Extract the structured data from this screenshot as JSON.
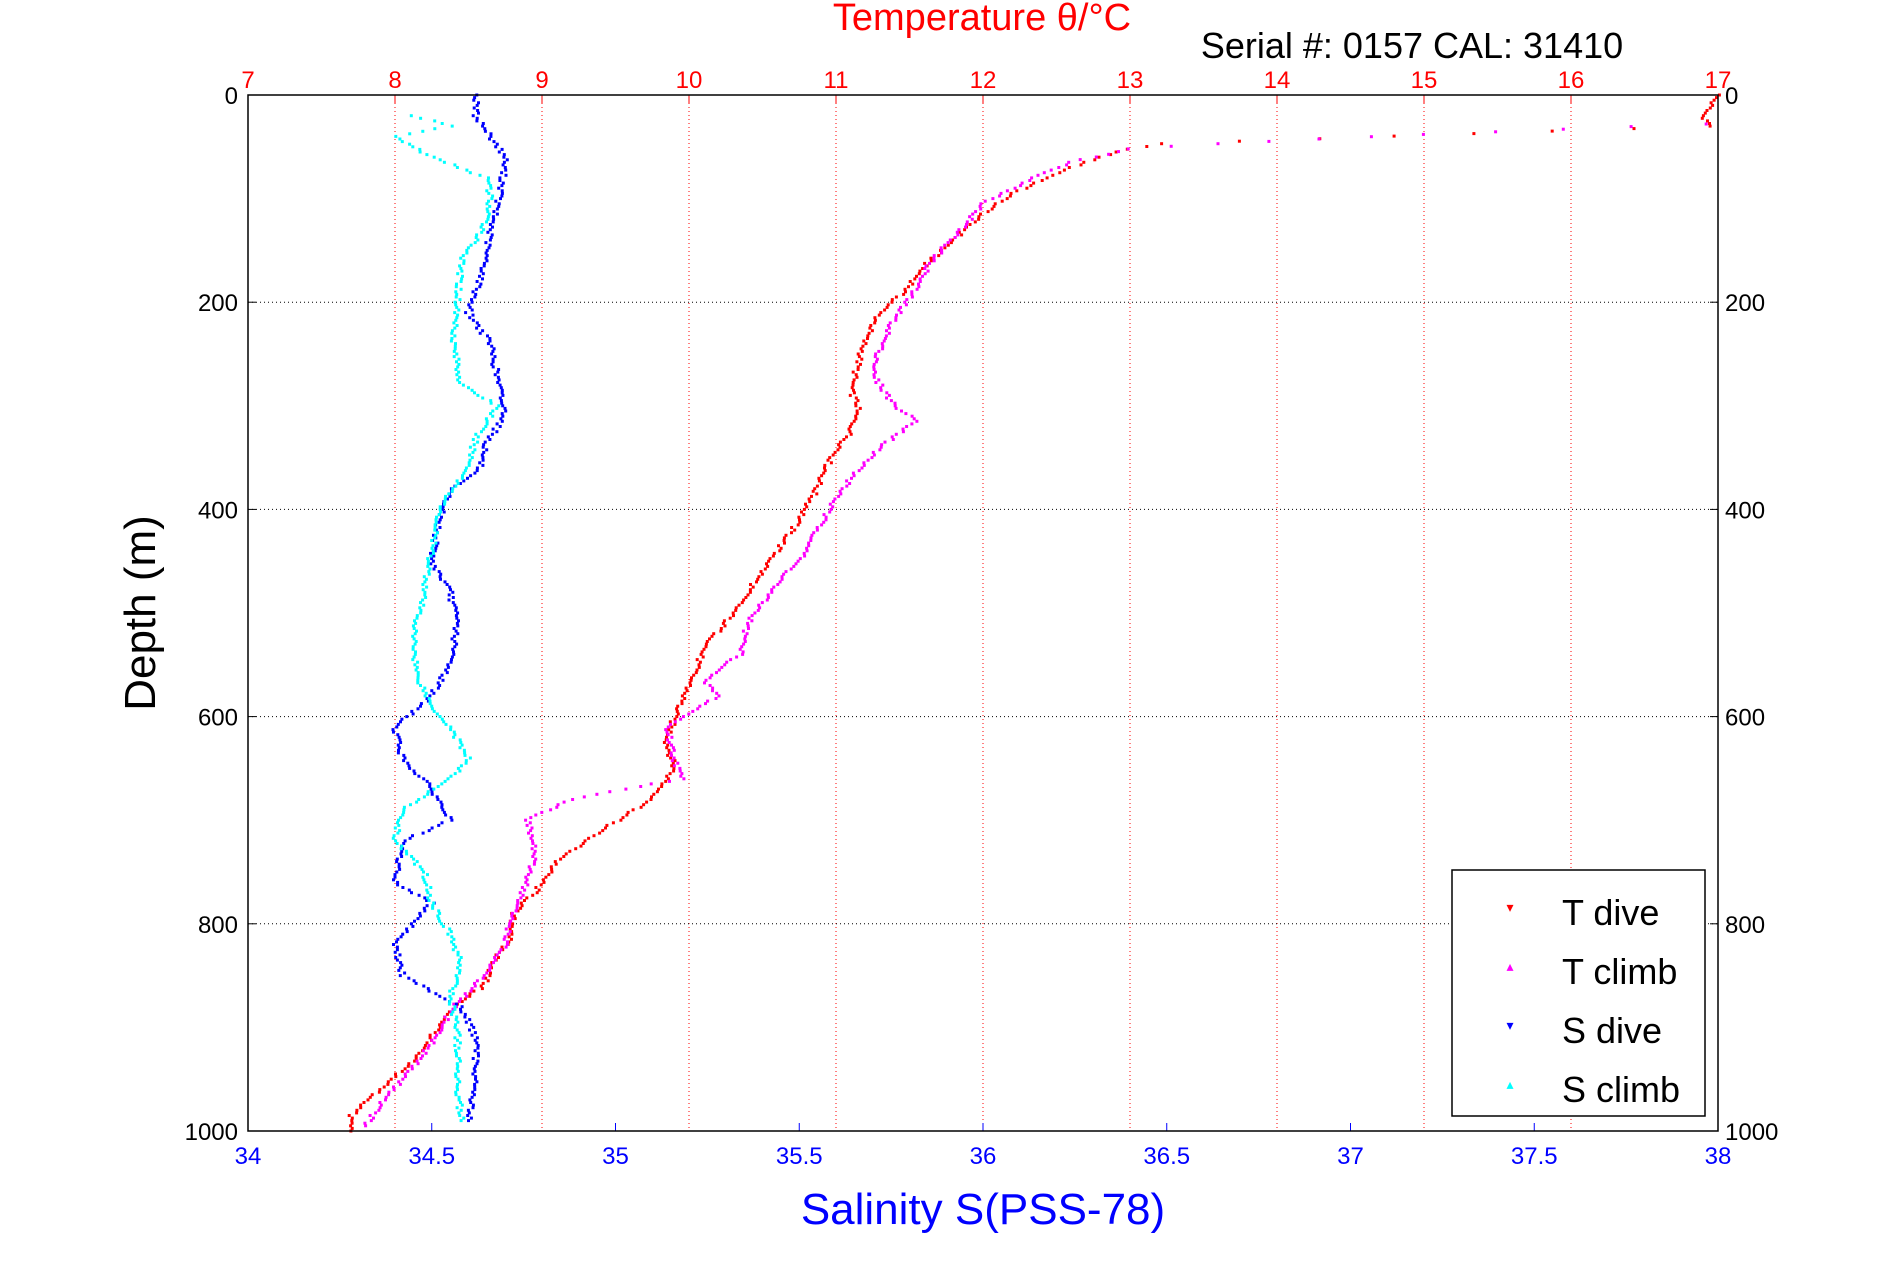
{
  "chart_data": {
    "type": "scatter",
    "title": "Temperature θ/°C",
    "subtitle": "Serial #: 0157  CAL: 31410",
    "xlabel": "Salinity S(PSS-78)",
    "ylabel": "Depth (m)",
    "x_bottom": {
      "label": "Salinity S(PSS-78)",
      "lim": [
        34,
        38
      ],
      "ticks": [
        "34",
        "34.5",
        "35",
        "35.5",
        "36",
        "36.5",
        "37",
        "37.5",
        "38"
      ]
    },
    "x_top": {
      "label": "Temperature θ/°C",
      "lim": [
        7,
        17
      ],
      "ticks": [
        "7",
        "8",
        "9",
        "10",
        "11",
        "12",
        "13",
        "14",
        "15",
        "16",
        "17"
      ]
    },
    "y": {
      "label": "Depth (m)",
      "lim": [
        0,
        1000
      ],
      "reversed": true,
      "ticks": [
        "0",
        "200",
        "400",
        "600",
        "800",
        "1000"
      ]
    },
    "grid": true,
    "legend_position": "bottom-right",
    "colors": {
      "temperature_axis": "#ff0000",
      "salinity_axis": "#0000ff",
      "t_dive": "#ff0000",
      "t_climb": "#ff00ff",
      "s_dive": "#0000ff",
      "s_climb": "#00ffff"
    },
    "series": [
      {
        "name": "T dive",
        "axis": "temperature",
        "marker": "▾",
        "color": "#ff0000",
        "points": [
          [
            17.0,
            0
          ],
          [
            16.95,
            10
          ],
          [
            16.9,
            20
          ],
          [
            16.95,
            30
          ],
          [
            13.2,
            47
          ],
          [
            12.9,
            55
          ],
          [
            12.6,
            70
          ],
          [
            12.2,
            95
          ],
          [
            11.95,
            120
          ],
          [
            11.8,
            140
          ],
          [
            11.6,
            165
          ],
          [
            11.5,
            185
          ],
          [
            11.3,
            210
          ],
          [
            11.2,
            235
          ],
          [
            11.15,
            260
          ],
          [
            11.1,
            285
          ],
          [
            11.15,
            300
          ],
          [
            11.1,
            325
          ],
          [
            10.95,
            355
          ],
          [
            10.85,
            385
          ],
          [
            10.75,
            410
          ],
          [
            10.6,
            440
          ],
          [
            10.45,
            470
          ],
          [
            10.3,
            500
          ],
          [
            10.1,
            535
          ],
          [
            10.0,
            570
          ],
          [
            9.9,
            600
          ],
          [
            9.85,
            625
          ],
          [
            9.9,
            650
          ],
          [
            9.75,
            680
          ],
          [
            9.4,
            710
          ],
          [
            9.1,
            740
          ],
          [
            8.95,
            770
          ],
          [
            8.8,
            790
          ],
          [
            8.8,
            810
          ],
          [
            8.7,
            830
          ],
          [
            8.6,
            860
          ],
          [
            8.4,
            880
          ],
          [
            8.3,
            900
          ],
          [
            8.1,
            935
          ],
          [
            7.9,
            960
          ],
          [
            7.7,
            985
          ],
          [
            7.7,
            1000
          ]
        ]
      },
      {
        "name": "T climb",
        "axis": "temperature",
        "marker": "▴",
        "color": "#ff00ff",
        "points": [
          [
            16.9,
            28
          ],
          [
            15.0,
            38
          ],
          [
            13.6,
            47
          ],
          [
            13.0,
            52
          ],
          [
            12.6,
            65
          ],
          [
            12.35,
            80
          ],
          [
            12.0,
            105
          ],
          [
            11.85,
            130
          ],
          [
            11.65,
            160
          ],
          [
            11.55,
            185
          ],
          [
            11.4,
            215
          ],
          [
            11.3,
            245
          ],
          [
            11.25,
            270
          ],
          [
            11.4,
            300
          ],
          [
            11.55,
            315
          ],
          [
            11.3,
            340
          ],
          [
            11.1,
            370
          ],
          [
            10.95,
            400
          ],
          [
            10.8,
            440
          ],
          [
            10.55,
            480
          ],
          [
            10.4,
            510
          ],
          [
            10.35,
            540
          ],
          [
            10.1,
            565
          ],
          [
            10.2,
            580
          ],
          [
            9.85,
            610
          ],
          [
            9.9,
            640
          ],
          [
            9.95,
            660
          ],
          [
            9.2,
            680
          ],
          [
            8.9,
            700
          ],
          [
            8.95,
            730
          ],
          [
            8.9,
            760
          ],
          [
            8.8,
            790
          ],
          [
            8.75,
            820
          ],
          [
            8.6,
            850
          ],
          [
            8.4,
            880
          ],
          [
            8.3,
            905
          ],
          [
            8.2,
            925
          ],
          [
            8.05,
            950
          ],
          [
            7.9,
            975
          ],
          [
            7.8,
            995
          ]
        ]
      },
      {
        "name": "S dive",
        "axis": "salinity",
        "marker": "▾",
        "color": "#0000ff",
        "points": [
          [
            34.62,
            0
          ],
          [
            34.62,
            20
          ],
          [
            34.66,
            40
          ],
          [
            34.7,
            60
          ],
          [
            34.69,
            90
          ],
          [
            34.66,
            130
          ],
          [
            34.64,
            170
          ],
          [
            34.6,
            210
          ],
          [
            34.66,
            240
          ],
          [
            34.68,
            275
          ],
          [
            34.7,
            310
          ],
          [
            34.65,
            335
          ],
          [
            34.63,
            360
          ],
          [
            34.55,
            380
          ],
          [
            34.52,
            410
          ],
          [
            34.5,
            450
          ],
          [
            34.55,
            480
          ],
          [
            34.57,
            510
          ],
          [
            34.55,
            550
          ],
          [
            34.5,
            580
          ],
          [
            34.4,
            610
          ],
          [
            34.42,
            640
          ],
          [
            34.5,
            670
          ],
          [
            34.55,
            700
          ],
          [
            34.42,
            720
          ],
          [
            34.4,
            760
          ],
          [
            34.5,
            780
          ],
          [
            34.4,
            820
          ],
          [
            34.42,
            850
          ],
          [
            34.58,
            880
          ],
          [
            34.62,
            910
          ],
          [
            34.62,
            950
          ],
          [
            34.6,
            990
          ]
        ]
      },
      {
        "name": "S climb",
        "axis": "salinity",
        "marker": "▴",
        "color": "#00ffff",
        "points": [
          [
            34.45,
            20
          ],
          [
            34.55,
            30
          ],
          [
            34.4,
            40
          ],
          [
            34.5,
            60
          ],
          [
            34.65,
            80
          ],
          [
            34.66,
            100
          ],
          [
            34.64,
            130
          ],
          [
            34.58,
            160
          ],
          [
            34.57,
            200
          ],
          [
            34.56,
            240
          ],
          [
            34.58,
            280
          ],
          [
            34.68,
            300
          ],
          [
            34.62,
            330
          ],
          [
            34.6,
            360
          ],
          [
            34.52,
            400
          ],
          [
            34.5,
            440
          ],
          [
            34.48,
            480
          ],
          [
            34.45,
            520
          ],
          [
            34.46,
            560
          ],
          [
            34.5,
            590
          ],
          [
            34.55,
            610
          ],
          [
            34.6,
            640
          ],
          [
            34.55,
            660
          ],
          [
            34.42,
            690
          ],
          [
            34.4,
            720
          ],
          [
            34.48,
            750
          ],
          [
            34.5,
            780
          ],
          [
            34.55,
            810
          ],
          [
            34.58,
            840
          ],
          [
            34.55,
            870
          ],
          [
            34.57,
            900
          ],
          [
            34.57,
            950
          ],
          [
            34.58,
            990
          ]
        ]
      }
    ]
  }
}
